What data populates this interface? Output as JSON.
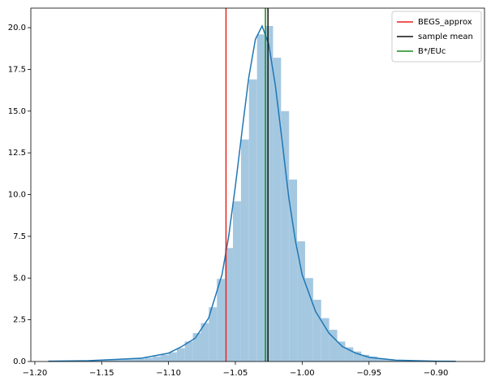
{
  "chart_data": {
    "type": "histogram",
    "bins": [
      -1.1898,
      -1.1838,
      -1.1778,
      -1.1718,
      -1.1658,
      -1.1598,
      -1.1538,
      -1.1478,
      -1.1418,
      -1.1358,
      -1.1298,
      -1.1238,
      -1.1178,
      -1.1118,
      -1.1058,
      -1.0998,
      -1.0938,
      -1.0878,
      -1.0818,
      -1.0758,
      -1.0698,
      -1.0638,
      -1.0578,
      -1.0518,
      -1.0458,
      -1.0398,
      -1.0338,
      -1.0278,
      -1.0218,
      -1.0158,
      -1.0098,
      -1.0038,
      -0.9978,
      -0.9918,
      -0.9858,
      -0.9798,
      -0.9738,
      -0.9678,
      -0.9618,
      -0.9558,
      -0.9498,
      -0.9438,
      -0.9378,
      -0.9318,
      -0.9258,
      -0.9198,
      -0.9138,
      -0.9078,
      -0.9018,
      -0.8958,
      -0.8898
    ],
    "counts": [
      0.02,
      0.02,
      0.03,
      0.03,
      0.04,
      0.05,
      0.06,
      0.08,
      0.1,
      0.12,
      0.14,
      0.17,
      0.22,
      0.3,
      0.4,
      0.55,
      0.8,
      1.2,
      1.7,
      2.3,
      3.25,
      4.95,
      6.8,
      9.6,
      13.3,
      16.9,
      19.6,
      20.1,
      18.2,
      15.0,
      10.9,
      7.2,
      5.0,
      3.7,
      2.6,
      1.9,
      1.2,
      0.85,
      0.6,
      0.4,
      0.3,
      0.2,
      0.15,
      0.1,
      0.08,
      0.05,
      0.04,
      0.03,
      0.02,
      0.02
    ],
    "color": "#a5c8e1",
    "kde": {
      "color": "#1f77b4",
      "x": [
        -1.19,
        -1.16,
        -1.14,
        -1.12,
        -1.1,
        -1.09,
        -1.08,
        -1.07,
        -1.06,
        -1.055,
        -1.05,
        -1.045,
        -1.04,
        -1.035,
        -1.03,
        -1.025,
        -1.02,
        -1.015,
        -1.01,
        -1.005,
        -1.0,
        -0.99,
        -0.98,
        -0.97,
        -0.96,
        -0.95,
        -0.93,
        -0.9,
        -0.885
      ],
      "values": [
        0.02,
        0.05,
        0.12,
        0.2,
        0.5,
        0.9,
        1.4,
        2.6,
        5.2,
        7.5,
        10.5,
        13.8,
        17.0,
        19.3,
        20.1,
        19.0,
        16.5,
        13.2,
        9.8,
        7.2,
        5.2,
        3.0,
        1.7,
        0.9,
        0.5,
        0.25,
        0.08,
        0.02,
        0.01
      ]
    },
    "vlines": [
      {
        "name": "BEGS_approx",
        "color": "#e8211a",
        "x": -1.057
      },
      {
        "name": "sample mean",
        "color": "#111111",
        "x": -1.0256
      },
      {
        "name": "B*/EUc",
        "color": "#1a8a1a",
        "x": -1.0275
      }
    ],
    "legend": "upper right",
    "xlim": [
      -1.203,
      -0.8636
    ],
    "ylim": [
      0,
      21.17
    ],
    "xticks": [
      {
        "value": -1.2,
        "label": "−1.20"
      },
      {
        "value": -1.15,
        "label": "−1.15"
      },
      {
        "value": -1.1,
        "label": "−1.10"
      },
      {
        "value": -1.05,
        "label": "−1.05"
      },
      {
        "value": -1.0,
        "label": "−1.00"
      },
      {
        "value": -0.95,
        "label": "−0.95"
      },
      {
        "value": -0.9,
        "label": "−0.90"
      }
    ],
    "yticks": [
      {
        "value": 0,
        "label": "0.0"
      },
      {
        "value": 2.5,
        "label": "2.5"
      },
      {
        "value": 5,
        "label": "5.0"
      },
      {
        "value": 7.5,
        "label": "7.5"
      },
      {
        "value": 10,
        "label": "10.0"
      },
      {
        "value": 12.5,
        "label": "12.5"
      },
      {
        "value": 15,
        "label": "15.0"
      },
      {
        "value": 17.5,
        "label": "17.5"
      },
      {
        "value": 20,
        "label": "20.0"
      }
    ]
  }
}
